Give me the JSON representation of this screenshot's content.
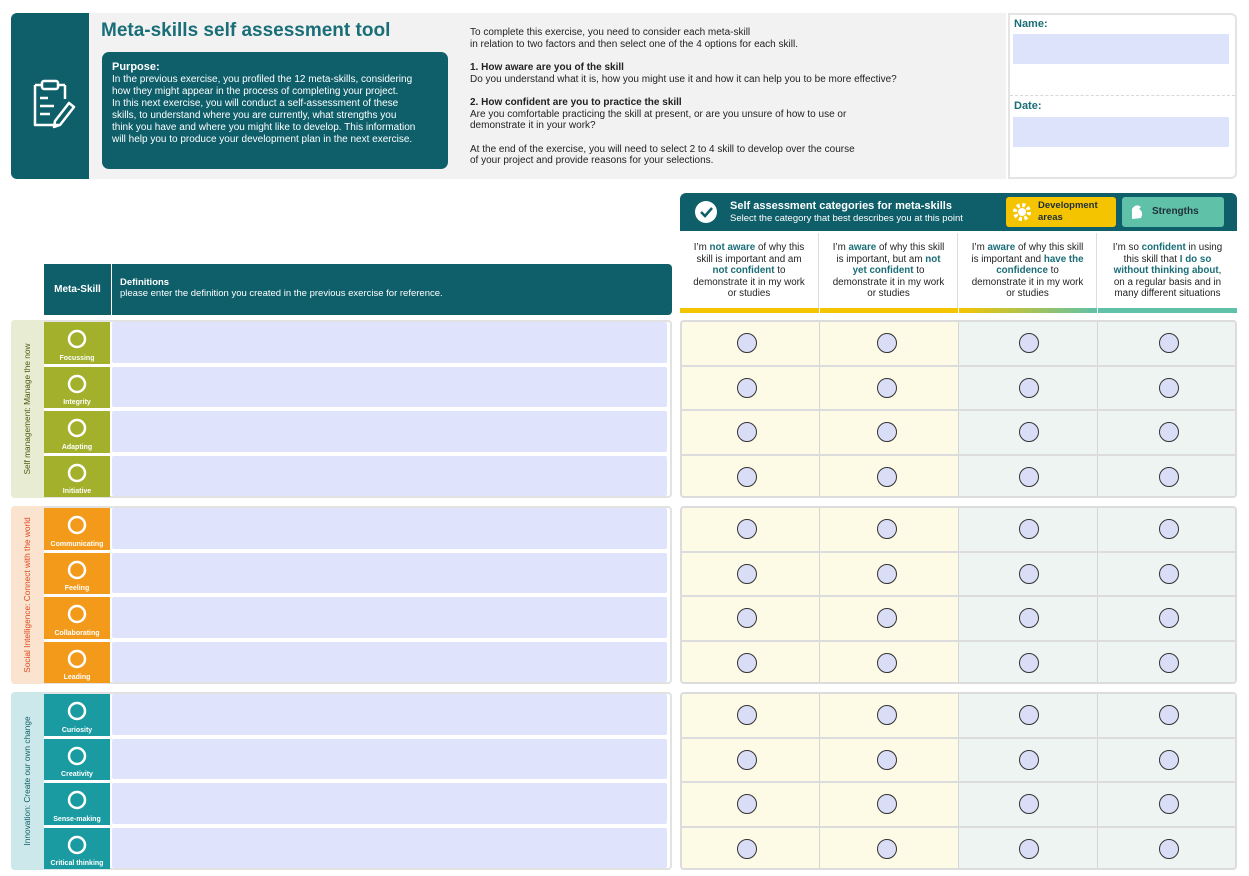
{
  "header": {
    "title": "Meta-skills self assessment tool",
    "purpose_heading": "Purpose:",
    "purpose_lines": [
      "In the previous exercise, you profiled the 12 meta-skills, considering",
      "how they might appear in the process of completing your project.",
      "In this next exercise, you will conduct a self-assessment of these",
      "skills, to understand where you are currently, what strengths you",
      "think you have and where you might like to develop. This information",
      "will help you to produce your development plan in the next exercise."
    ]
  },
  "instructions": {
    "intro_lines": [
      "To complete this exercise, you need to consider each meta-skill",
      "in relation to two factors and then select one of the 4 options for each skill."
    ],
    "factors": [
      {
        "heading": "1. How aware are you of the skill",
        "lines": [
          "Do you understand what it is, how you might use it and how it can help you to be more effective?"
        ]
      },
      {
        "heading": "2. How confident are you to practice the skill",
        "lines": [
          "Are you comfortable practicing the skill at present, or are you unsure of how to use or",
          "demonstrate it in your work?"
        ]
      }
    ],
    "outro_lines": [
      "At the end of the exercise, you will need to select 2 to 4 skill to develop over the course",
      "of your project and provide reasons for your selections."
    ]
  },
  "fields": {
    "name_label": "Name:",
    "date_label": "Date:"
  },
  "table": {
    "meta_skill_heading": "Meta-Skill",
    "definitions_heading": "Definitions",
    "definitions_note": "please enter the definition you created in the previous exercise for reference.",
    "categories_title": "Self assessment categories for meta-skills",
    "categories_subtitle": "Select the category that best describes you at this point",
    "legend": [
      "Development areas",
      "Strengths"
    ],
    "columns": [
      [
        "I’m ",
        "not aware",
        " of why this skill is important and am ",
        "not confident",
        " to demonstrate it in my work or studies"
      ],
      [
        "I’m ",
        "aware",
        " of why this skill is important, but am ",
        "not yet confident",
        " to demonstrate it in my work or studies"
      ],
      [
        "I’m ",
        "aware",
        " of why this skill is important and ",
        "have the confidence",
        " to demonstrate it in my work or studies"
      ],
      [
        "I’m so ",
        "confident",
        " in using this skill that ",
        "I do so without thinking about",
        ", on a regular basis and in many different situations"
      ]
    ],
    "groups": [
      {
        "label": "Self management: Manage the now",
        "skills": [
          "Focussing",
          "Integrity",
          "Adapting",
          "Initiative"
        ]
      },
      {
        "label": "Social Intelligence: Connect with the world",
        "skills": [
          "Communicating",
          "Feeling",
          "Collaborating",
          "Leading"
        ]
      },
      {
        "label": "Innovation: Create our own change",
        "skills": [
          "Curiosity",
          "Creativity",
          "Sense-making",
          "Critical thinking"
        ]
      }
    ]
  }
}
